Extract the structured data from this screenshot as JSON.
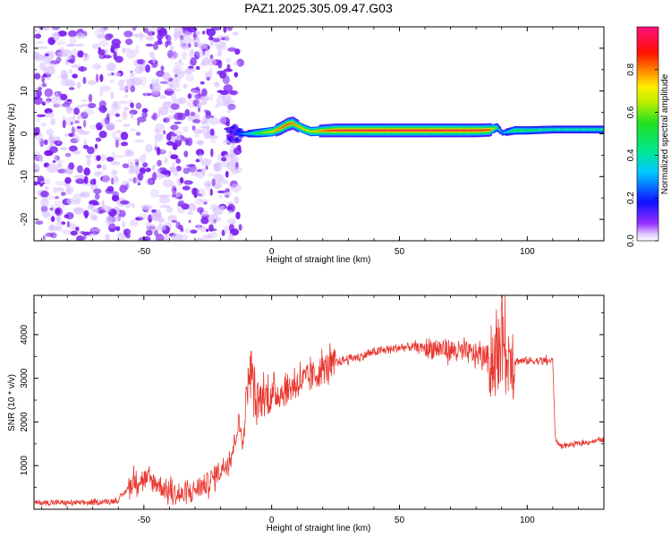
{
  "title": "PAZ1.2025.305.09.47.G03",
  "chart_data": [
    {
      "type": "heatmap",
      "title": "PAZ1.2025.305.09.47.G03",
      "xlabel": "Height of straight line (km)",
      "ylabel": "Frequency (Hz)",
      "xlim": [
        -93,
        130
      ],
      "ylim": [
        -25,
        25
      ],
      "xticks": [
        -50,
        0,
        50,
        100
      ],
      "xticklabels": [
        "-50",
        "0",
        "50",
        "100"
      ],
      "yticks": [
        -20,
        -10,
        0,
        10,
        20
      ],
      "yticklabels": [
        "-20",
        "-10",
        "0",
        "10",
        "20"
      ],
      "colorbar": {
        "label": "Normalized spectral amplitude",
        "range": [
          0,
          1
        ],
        "ticks": [
          0.0,
          0.2,
          0.4,
          0.6,
          0.8
        ],
        "ticklabels": [
          "0.0",
          "0.2",
          "0.4",
          "0.6",
          "0.8"
        ],
        "colormap": "rainbow (magenta-blue-cyan-green-yellow-red-pink)"
      },
      "noise_region": {
        "x_range": [
          -93,
          -15
        ],
        "color": "#7a1ff0"
      },
      "ridge": {
        "x": [
          -15,
          -10,
          -5,
          0,
          3,
          6,
          8,
          10,
          12,
          15,
          20,
          25,
          40,
          60,
          80,
          85,
          88,
          90,
          95,
          100,
          110,
          120,
          130
        ],
        "y": [
          0,
          0,
          0.2,
          0.5,
          1.2,
          2.2,
          2.5,
          1.8,
          1.2,
          0.5,
          0.7,
          0.8,
          0.8,
          0.8,
          0.8,
          0.9,
          1.5,
          0.2,
          0.8,
          0.8,
          1.0,
          1.0,
          1.0
        ],
        "strength": [
          0.2,
          0.35,
          0.6,
          0.75,
          0.85,
          0.9,
          0.85,
          0.8,
          0.75,
          0.7,
          0.85,
          0.95,
          0.97,
          0.97,
          0.95,
          0.9,
          0.5,
          0.3,
          0.55,
          0.5,
          0.45,
          0.45,
          0.45
        ]
      }
    },
    {
      "type": "line",
      "xlabel": "Height of straight line (km)",
      "ylabel": "SNR (10 * v/v)",
      "xlim": [
        -93,
        130
      ],
      "ylim": [
        0,
        4900
      ],
      "xticks": [
        -50,
        0,
        50,
        100
      ],
      "xticklabels": [
        "-50",
        "0",
        "50",
        "100"
      ],
      "yticks": [
        1000,
        2000,
        3000,
        4000
      ],
      "yticklabels": [
        "1000",
        "2000",
        "3000",
        "4000"
      ],
      "line_color": "#e8372f",
      "series": [
        {
          "x": [
            -93,
            -80,
            -70,
            -60,
            -56,
            -54,
            -50,
            -45,
            -40,
            -35,
            -30,
            -25,
            -20,
            -17,
            -15,
            -13,
            -11,
            -10,
            -8,
            -6,
            -5,
            -2,
            0,
            5,
            10,
            15,
            20,
            25,
            30,
            35,
            40,
            45,
            50,
            55,
            60,
            65,
            70,
            75,
            80,
            85,
            88,
            90,
            91,
            92,
            93,
            95,
            100,
            105,
            110,
            111,
            113,
            120,
            125,
            130
          ],
          "y": [
            150,
            150,
            150,
            200,
            500,
            650,
            700,
            600,
            400,
            300,
            450,
            600,
            900,
            1100,
            1400,
            2000,
            1500,
            2600,
            3300,
            2300,
            2500,
            2600,
            2600,
            2700,
            2900,
            3000,
            3200,
            3350,
            3450,
            3500,
            3600,
            3650,
            3700,
            3720,
            3700,
            3680,
            3650,
            3600,
            3550,
            3500,
            3400,
            3900,
            4500,
            2900,
            3800,
            3400,
            3400,
            3400,
            3400,
            1600,
            1450,
            1500,
            1550,
            1600
          ]
        }
      ],
      "noise": [
        {
          "x_range": [
            -93,
            -56
          ],
          "amp": 120
        },
        {
          "x_range": [
            -56,
            -10
          ],
          "amp": 500
        },
        {
          "x_range": [
            -10,
            0
          ],
          "amp": 900
        },
        {
          "x_range": [
            0,
            25
          ],
          "amp": 700
        },
        {
          "x_range": [
            25,
            60
          ],
          "amp": 200
        },
        {
          "x_range": [
            60,
            85
          ],
          "amp": 500
        },
        {
          "x_range": [
            85,
            95
          ],
          "amp": 1800
        },
        {
          "x_range": [
            95,
            110
          ],
          "amp": 180
        },
        {
          "x_range": [
            110,
            130
          ],
          "amp": 100
        }
      ]
    }
  ]
}
